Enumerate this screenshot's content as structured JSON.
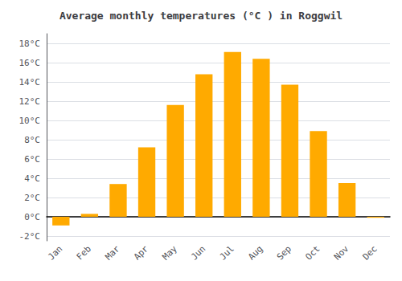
{
  "chart_data": {
    "type": "bar",
    "title": "Average monthly temperatures (°C ) in Roggwil",
    "categories": [
      "Jan",
      "Feb",
      "Mar",
      "Apr",
      "May",
      "Jun",
      "Jul",
      "Aug",
      "Sep",
      "Oct",
      "Nov",
      "Dec"
    ],
    "values": [
      -0.9,
      0.3,
      3.4,
      7.2,
      11.6,
      14.8,
      17.1,
      16.4,
      13.7,
      8.9,
      3.5,
      -0.1
    ],
    "color": "#FFAA00",
    "ylim": [
      -2.5,
      19
    ],
    "yticks": [
      {
        "value": -2,
        "label": "-2°C"
      },
      {
        "value": 0,
        "label": "0°C"
      },
      {
        "value": 2,
        "label": "2°C"
      },
      {
        "value": 4,
        "label": "4°C"
      },
      {
        "value": 6,
        "label": "6°C"
      },
      {
        "value": 8,
        "label": "8°C"
      },
      {
        "value": 10,
        "label": "10°C"
      },
      {
        "value": 12,
        "label": "12°C"
      },
      {
        "value": 14,
        "label": "14°C"
      },
      {
        "value": 16,
        "label": "16°C"
      },
      {
        "value": 18,
        "label": "18°C"
      }
    ],
    "grid": true
  }
}
